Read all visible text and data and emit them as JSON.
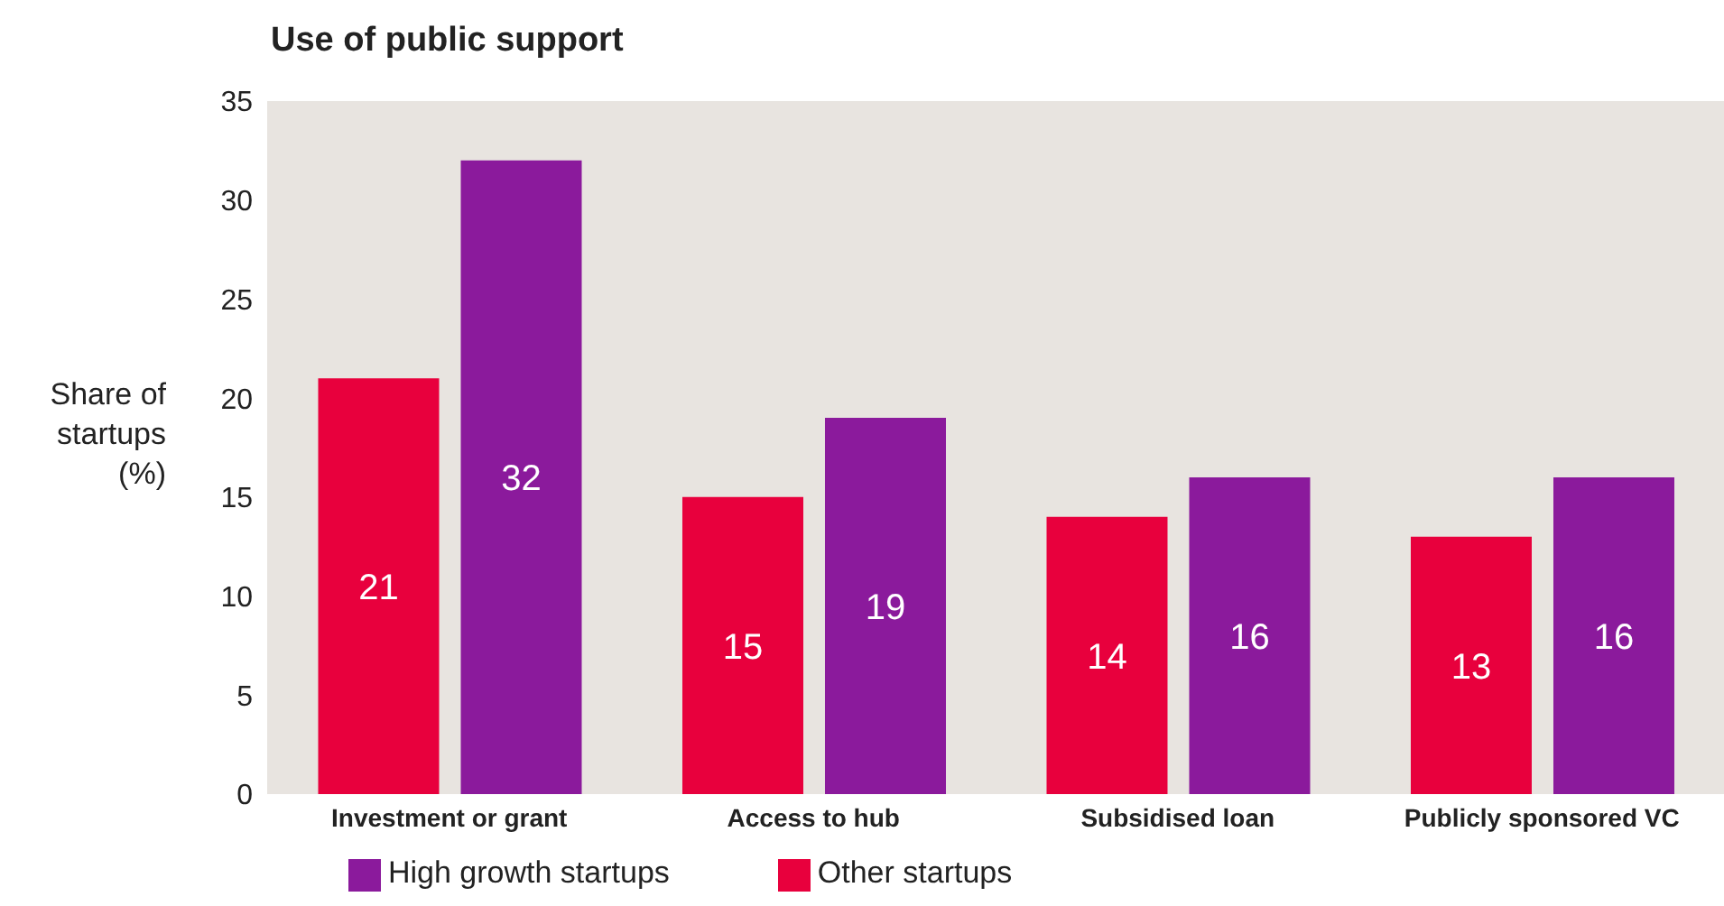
{
  "chart_data": {
    "type": "bar",
    "title": "Use of public support",
    "ylabel": "Share of startups (%)",
    "categories": [
      "Investment or grant",
      "Access to hub",
      "Subsidised loan",
      "Publicly sponsored VC"
    ],
    "series": [
      {
        "name": "Other startups",
        "color": "#e8003d",
        "values": [
          21,
          15,
          14,
          13
        ]
      },
      {
        "name": "High growth startups",
        "color": "#8b1a9c",
        "values": [
          32,
          19,
          16,
          16
        ]
      }
    ],
    "ylim": [
      0,
      35
    ],
    "yticks": [
      0,
      5,
      10,
      15,
      20,
      25,
      30,
      35
    ],
    "grid": false,
    "legend": "bottom left",
    "data_labels": true
  }
}
